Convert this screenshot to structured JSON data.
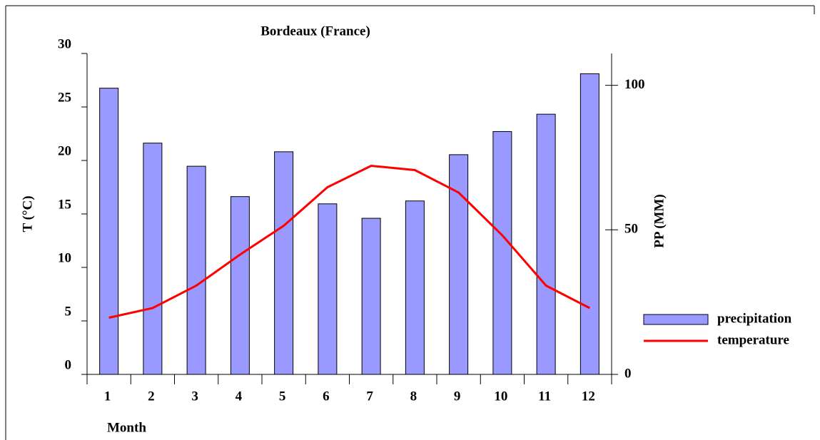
{
  "chart_data": {
    "type": "bar-line",
    "title": "Bordeaux (France)",
    "x_label": "Month",
    "y_label": "T (°C)",
    "y2_label": "PP (MM)",
    "categories": [
      "1",
      "2",
      "3",
      "4",
      "5",
      "6",
      "7",
      "8",
      "9",
      "10",
      "11",
      "12"
    ],
    "series": [
      {
        "name": "precipitation",
        "type": "bar",
        "axis": "y2",
        "color": "#9999ff",
        "values": [
          99,
          80,
          72,
          61.5,
          77,
          59,
          54,
          60,
          76,
          84,
          90,
          104
        ]
      },
      {
        "name": "temperature",
        "type": "line",
        "axis": "y",
        "color": "#ff0000",
        "values": [
          5.3,
          6.2,
          8.3,
          11.2,
          13.9,
          17.5,
          19.5,
          19.1,
          17,
          13,
          8.3,
          6.2
        ]
      }
    ],
    "ylim": [
      0,
      30
    ],
    "yticks": [
      0,
      5,
      10,
      15,
      20,
      25,
      30
    ],
    "y2lim": [
      0,
      111
    ],
    "y2ticks": [
      0,
      50,
      100
    ],
    "legend": "right"
  }
}
